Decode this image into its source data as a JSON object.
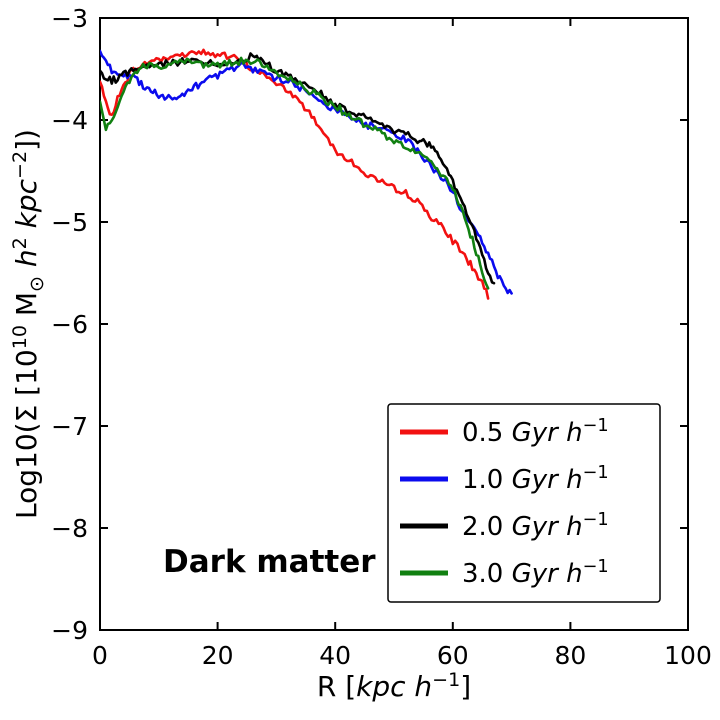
{
  "chart_data": {
    "type": "line",
    "title": "",
    "annotation": "Dark matter",
    "xlabel_text": "R [kpc h⁻¹]",
    "ylabel_text": "Log10(Σ [10¹⁰ M⊙ h² kpc⁻²])",
    "xlabel_parts": [
      {
        "t": "R ["
      },
      {
        "t": "kpc h",
        "it": true
      },
      {
        "t": "−1",
        "sup": true
      },
      {
        "t": "]"
      }
    ],
    "ylabel_parts": [
      {
        "t": "Log10(Σ [10"
      },
      {
        "t": "10",
        "sup": true
      },
      {
        "t": " M"
      },
      {
        "t": "⊙",
        "sub": true
      },
      {
        "t": " h",
        "it": true
      },
      {
        "t": "2",
        "sup": true
      },
      {
        "t": " kpc",
        "it": true
      },
      {
        "t": "−2",
        "sup": true
      },
      {
        "t": "])"
      }
    ],
    "xlim": [
      0,
      100
    ],
    "ylim": [
      -9,
      -3
    ],
    "xticks": [
      0,
      20,
      40,
      60,
      80,
      100
    ],
    "xtick_labels": [
      "0",
      "20",
      "40",
      "60",
      "80",
      "100"
    ],
    "yticks": [
      -3,
      -4,
      -5,
      -6,
      -7,
      -8,
      -9
    ],
    "ytick_labels": [
      "−3",
      "−4",
      "−5",
      "−6",
      "−7",
      "−8",
      "−9"
    ],
    "grid": false,
    "legend_position": "lower right",
    "series": [
      {
        "name": "0.5 Gyr h^-1",
        "color": "#f21111",
        "label_parts": [
          {
            "t": "0.5 "
          },
          {
            "t": "Gyr h",
            "it": true
          },
          {
            "t": "−1",
            "sup": true
          }
        ],
        "points": [
          [
            0,
            -3.62
          ],
          [
            1,
            -3.85
          ],
          [
            2,
            -3.95
          ],
          [
            3,
            -3.8
          ],
          [
            4,
            -3.66
          ],
          [
            5,
            -3.55
          ],
          [
            6,
            -3.5
          ],
          [
            8,
            -3.44
          ],
          [
            10,
            -3.4
          ],
          [
            12,
            -3.38
          ],
          [
            14,
            -3.36
          ],
          [
            16,
            -3.33
          ],
          [
            18,
            -3.34
          ],
          [
            20,
            -3.36
          ],
          [
            22,
            -3.38
          ],
          [
            24,
            -3.42
          ],
          [
            26,
            -3.5
          ],
          [
            28,
            -3.56
          ],
          [
            30,
            -3.64
          ],
          [
            32,
            -3.72
          ],
          [
            34,
            -3.82
          ],
          [
            36,
            -3.95
          ],
          [
            38,
            -4.12
          ],
          [
            40,
            -4.28
          ],
          [
            42,
            -4.38
          ],
          [
            44,
            -4.48
          ],
          [
            46,
            -4.55
          ],
          [
            48,
            -4.62
          ],
          [
            50,
            -4.68
          ],
          [
            52,
            -4.72
          ],
          [
            54,
            -4.8
          ],
          [
            56,
            -4.92
          ],
          [
            58,
            -5.05
          ],
          [
            60,
            -5.18
          ],
          [
            62,
            -5.32
          ],
          [
            63,
            -5.42
          ],
          [
            64,
            -5.5
          ],
          [
            65,
            -5.6
          ],
          [
            66,
            -5.75
          ]
        ]
      },
      {
        "name": "1.0 Gyr h^-1",
        "color": "#0b0bee",
        "label_parts": [
          {
            "t": "1.0 "
          },
          {
            "t": "Gyr h",
            "it": true
          },
          {
            "t": "−1",
            "sup": true
          }
        ],
        "points": [
          [
            0,
            -3.3
          ],
          [
            1,
            -3.42
          ],
          [
            2,
            -3.52
          ],
          [
            3,
            -3.56
          ],
          [
            4,
            -3.6
          ],
          [
            5,
            -3.55
          ],
          [
            6,
            -3.58
          ],
          [
            7,
            -3.65
          ],
          [
            8,
            -3.7
          ],
          [
            9,
            -3.72
          ],
          [
            10,
            -3.76
          ],
          [
            11,
            -3.78
          ],
          [
            12,
            -3.8
          ],
          [
            13,
            -3.78
          ],
          [
            14,
            -3.76
          ],
          [
            15,
            -3.72
          ],
          [
            16,
            -3.68
          ],
          [
            17,
            -3.64
          ],
          [
            18,
            -3.6
          ],
          [
            19,
            -3.57
          ],
          [
            20,
            -3.55
          ],
          [
            22,
            -3.5
          ],
          [
            24,
            -3.48
          ],
          [
            26,
            -3.5
          ],
          [
            28,
            -3.54
          ],
          [
            30,
            -3.58
          ],
          [
            32,
            -3.62
          ],
          [
            34,
            -3.68
          ],
          [
            36,
            -3.76
          ],
          [
            38,
            -3.83
          ],
          [
            40,
            -3.9
          ],
          [
            42,
            -3.97
          ],
          [
            44,
            -4.02
          ],
          [
            46,
            -4.06
          ],
          [
            48,
            -4.09
          ],
          [
            50,
            -4.12
          ],
          [
            52,
            -4.2
          ],
          [
            54,
            -4.3
          ],
          [
            56,
            -4.42
          ],
          [
            58,
            -4.55
          ],
          [
            60,
            -4.72
          ],
          [
            62,
            -4.92
          ],
          [
            64,
            -5.1
          ],
          [
            65,
            -5.2
          ],
          [
            66,
            -5.32
          ],
          [
            67,
            -5.45
          ],
          [
            68,
            -5.55
          ],
          [
            69,
            -5.65
          ],
          [
            70,
            -5.7
          ]
        ]
      },
      {
        "name": "2.0 Gyr h^-1",
        "color": "#000000",
        "label_parts": [
          {
            "t": "2.0 "
          },
          {
            "t": "Gyr h",
            "it": true
          },
          {
            "t": "−1",
            "sup": true
          }
        ],
        "points": [
          [
            0,
            -3.52
          ],
          [
            1,
            -3.6
          ],
          [
            2,
            -3.62
          ],
          [
            3,
            -3.58
          ],
          [
            4,
            -3.55
          ],
          [
            5,
            -3.52
          ],
          [
            6,
            -3.5
          ],
          [
            8,
            -3.47
          ],
          [
            10,
            -3.45
          ],
          [
            12,
            -3.44
          ],
          [
            14,
            -3.43
          ],
          [
            16,
            -3.42
          ],
          [
            18,
            -3.44
          ],
          [
            20,
            -3.46
          ],
          [
            22,
            -3.44
          ],
          [
            24,
            -3.41
          ],
          [
            26,
            -3.38
          ],
          [
            27,
            -3.4
          ],
          [
            28,
            -3.45
          ],
          [
            30,
            -3.5
          ],
          [
            32,
            -3.57
          ],
          [
            34,
            -3.63
          ],
          [
            36,
            -3.7
          ],
          [
            38,
            -3.77
          ],
          [
            40,
            -3.85
          ],
          [
            42,
            -3.9
          ],
          [
            44,
            -3.94
          ],
          [
            46,
            -3.99
          ],
          [
            48,
            -4.05
          ],
          [
            50,
            -4.1
          ],
          [
            52,
            -4.15
          ],
          [
            54,
            -4.2
          ],
          [
            55,
            -4.22
          ],
          [
            56,
            -4.26
          ],
          [
            57,
            -4.3
          ],
          [
            58,
            -4.38
          ],
          [
            59,
            -4.48
          ],
          [
            60,
            -4.6
          ],
          [
            61,
            -4.72
          ],
          [
            62,
            -4.85
          ],
          [
            63,
            -5.0
          ],
          [
            64,
            -5.15
          ],
          [
            65,
            -5.32
          ],
          [
            66,
            -5.48
          ],
          [
            67,
            -5.6
          ]
        ]
      },
      {
        "name": "3.0 Gyr h^-1",
        "color": "#118011",
        "label_parts": [
          {
            "t": "3.0 "
          },
          {
            "t": "Gyr h",
            "it": true
          },
          {
            "t": "−1",
            "sup": true
          }
        ],
        "points": [
          [
            0,
            -3.85
          ],
          [
            1,
            -4.08
          ],
          [
            2,
            -4.0
          ],
          [
            3,
            -3.85
          ],
          [
            4,
            -3.7
          ],
          [
            5,
            -3.6
          ],
          [
            6,
            -3.54
          ],
          [
            7,
            -3.5
          ],
          [
            8,
            -3.48
          ],
          [
            10,
            -3.46
          ],
          [
            12,
            -3.44
          ],
          [
            14,
            -3.43
          ],
          [
            16,
            -3.44
          ],
          [
            18,
            -3.45
          ],
          [
            20,
            -3.45
          ],
          [
            22,
            -3.44
          ],
          [
            24,
            -3.43
          ],
          [
            26,
            -3.42
          ],
          [
            28,
            -3.47
          ],
          [
            30,
            -3.53
          ],
          [
            32,
            -3.6
          ],
          [
            34,
            -3.66
          ],
          [
            36,
            -3.73
          ],
          [
            38,
            -3.8
          ],
          [
            40,
            -3.87
          ],
          [
            42,
            -3.94
          ],
          [
            44,
            -4.0
          ],
          [
            46,
            -4.07
          ],
          [
            48,
            -4.14
          ],
          [
            50,
            -4.2
          ],
          [
            52,
            -4.27
          ],
          [
            54,
            -4.32
          ],
          [
            56,
            -4.4
          ],
          [
            57,
            -4.45
          ],
          [
            58,
            -4.52
          ],
          [
            59,
            -4.6
          ],
          [
            60,
            -4.7
          ],
          [
            61,
            -4.82
          ],
          [
            62,
            -4.95
          ],
          [
            63,
            -5.12
          ],
          [
            64,
            -5.3
          ],
          [
            65,
            -5.5
          ],
          [
            66,
            -5.65
          ]
        ]
      }
    ]
  }
}
